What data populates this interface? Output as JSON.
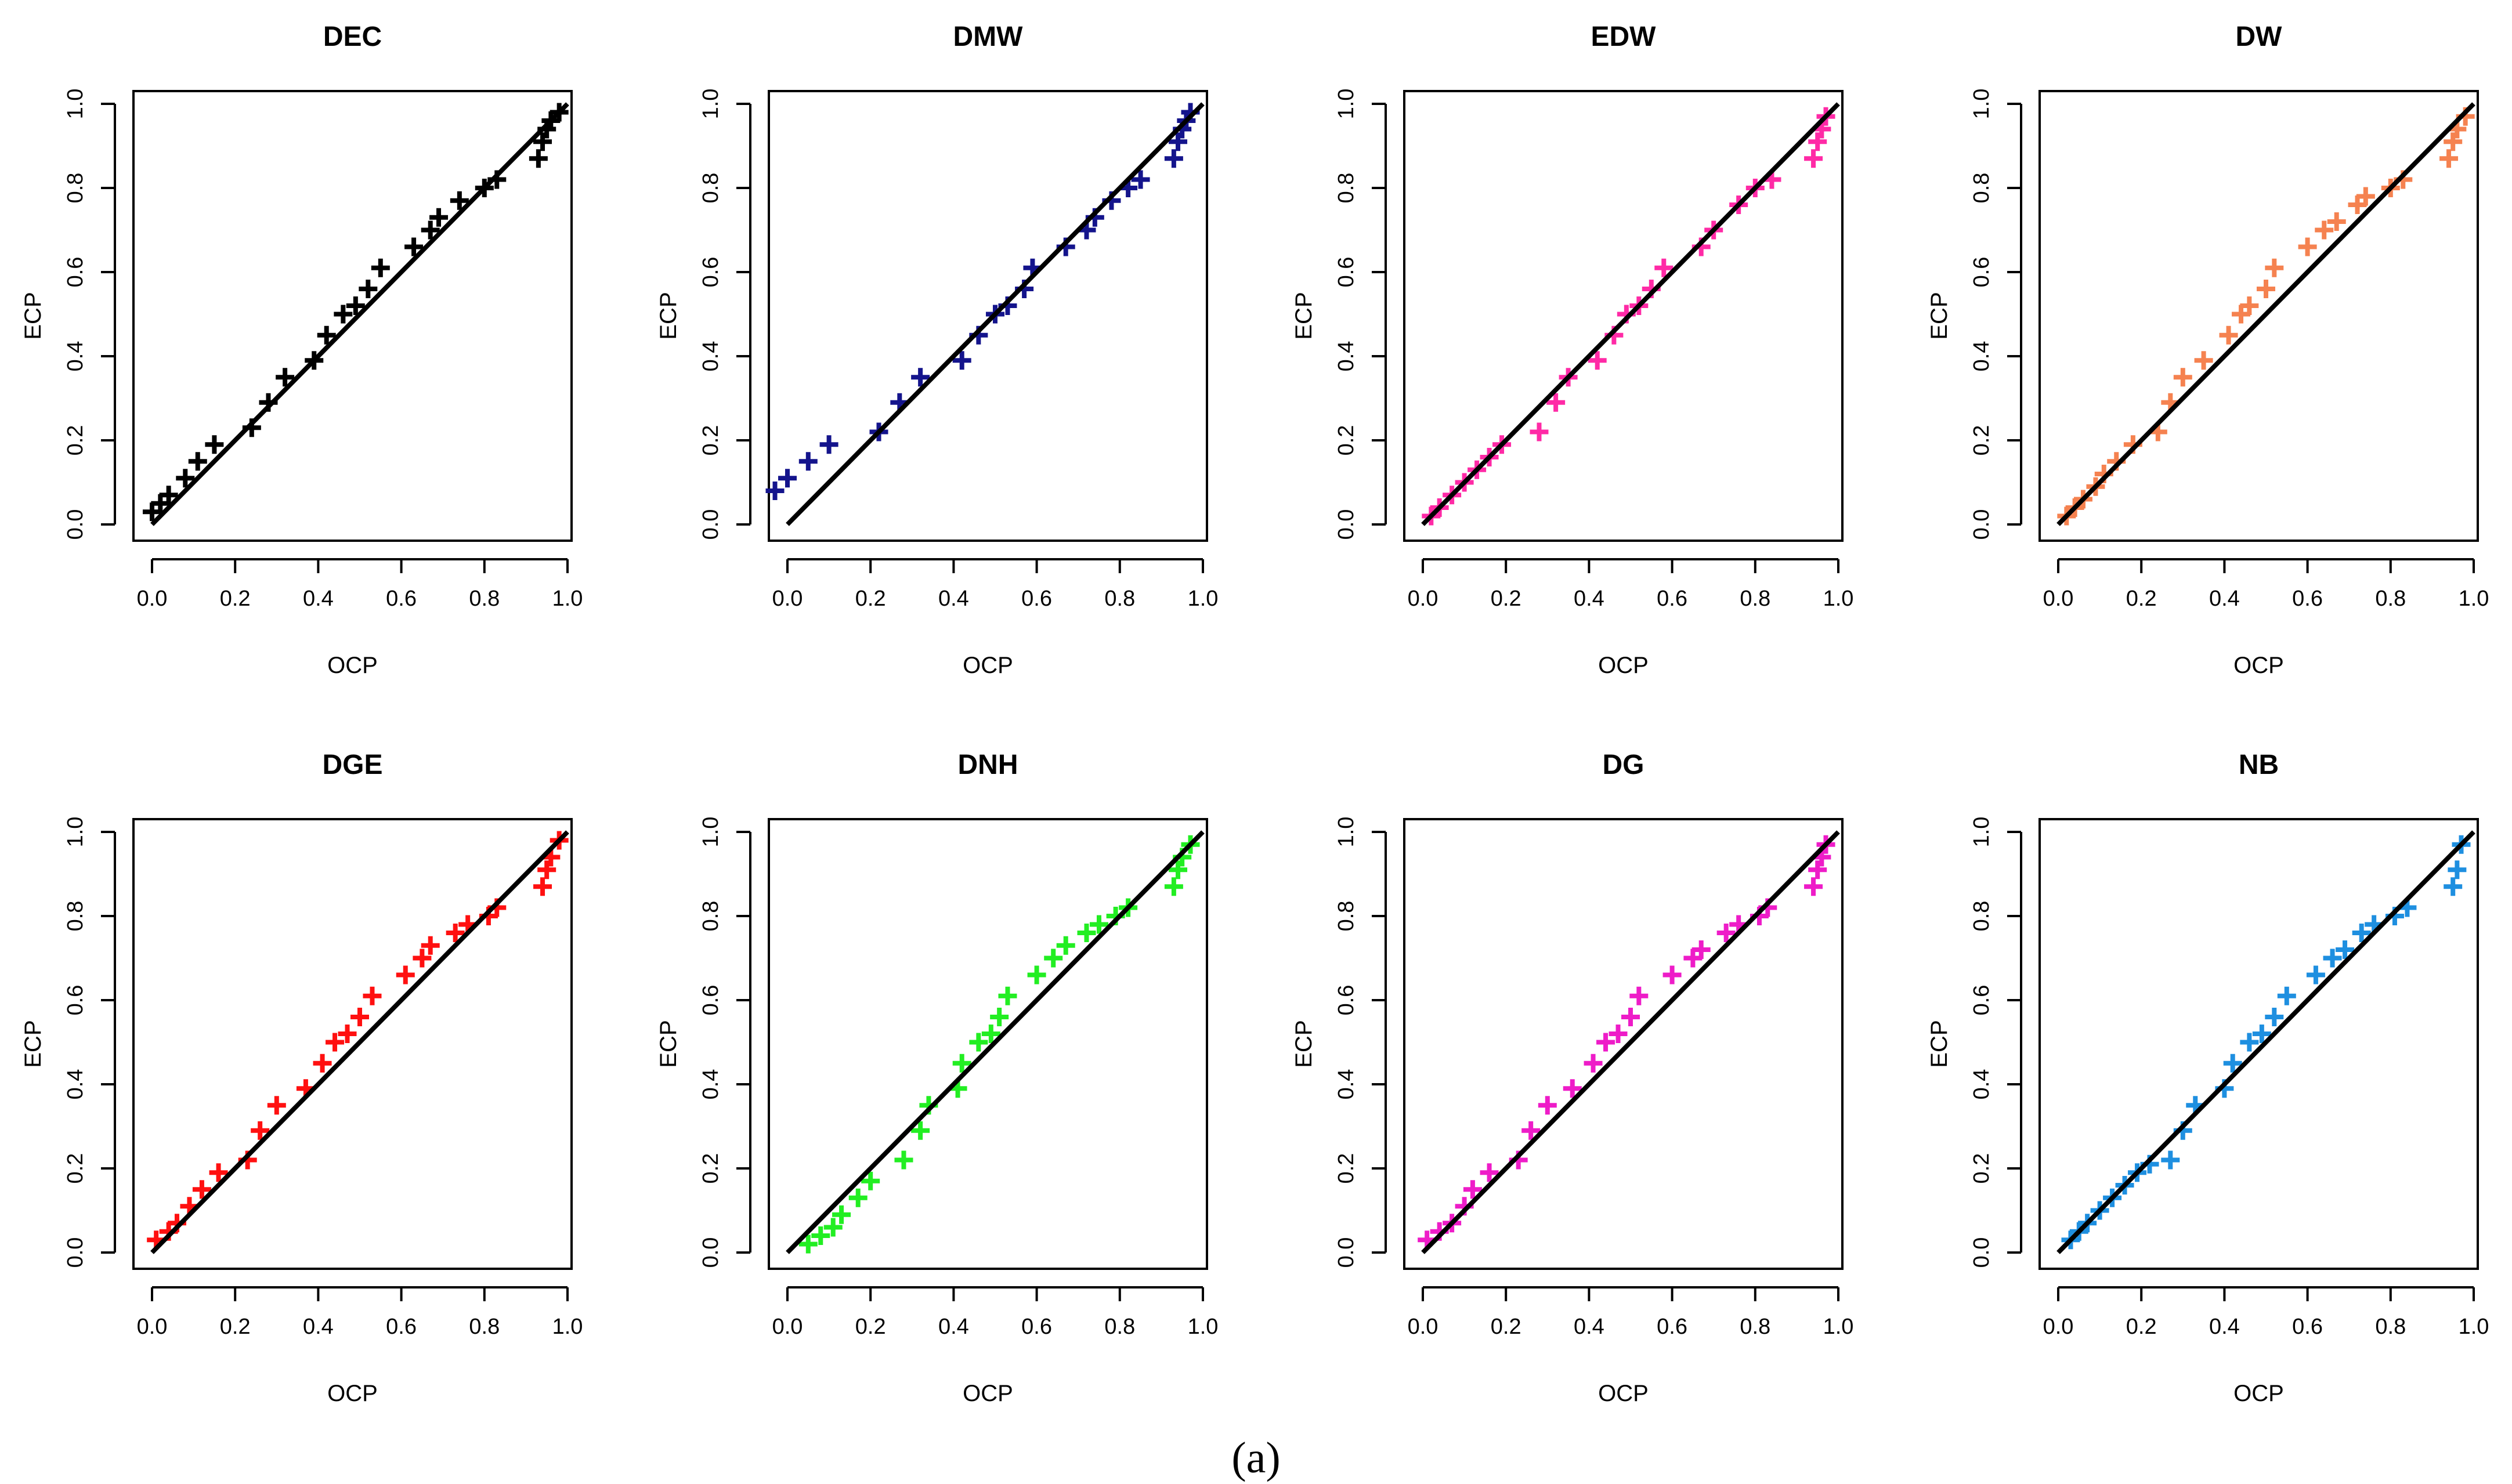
{
  "figure": {
    "caption": "(a)"
  },
  "chart_data": [
    {
      "type": "scatter",
      "title": "DEC",
      "xlabel": "OCP",
      "ylabel": "ECP",
      "xlim": [
        0,
        1
      ],
      "ylim": [
        0,
        1
      ],
      "color": "#000000",
      "xticks": [
        "0.0",
        "0.2",
        "0.4",
        "0.6",
        "0.8",
        "1.0"
      ],
      "yticks": [
        "0.0",
        "0.2",
        "0.4",
        "0.6",
        "0.8",
        "1.0"
      ],
      "reference_line": {
        "from": [
          0,
          0
        ],
        "to": [
          1,
          1
        ]
      },
      "x": [
        0.0,
        0.02,
        0.04,
        0.08,
        0.11,
        0.15,
        0.24,
        0.28,
        0.32,
        0.39,
        0.42,
        0.46,
        0.49,
        0.52,
        0.55,
        0.63,
        0.67,
        0.69,
        0.74,
        0.8,
        0.83,
        0.93,
        0.94,
        0.95,
        0.96,
        0.98
      ],
      "y": [
        0.03,
        0.05,
        0.07,
        0.11,
        0.15,
        0.19,
        0.23,
        0.29,
        0.35,
        0.39,
        0.45,
        0.5,
        0.52,
        0.56,
        0.61,
        0.66,
        0.7,
        0.73,
        0.77,
        0.8,
        0.82,
        0.87,
        0.91,
        0.94,
        0.96,
        0.98
      ]
    },
    {
      "type": "scatter",
      "title": "DMW",
      "xlabel": "OCP",
      "ylabel": "ECP",
      "xlim": [
        0,
        1
      ],
      "ylim": [
        0,
        1
      ],
      "color": "#14148c",
      "xticks": [
        "0.0",
        "0.2",
        "0.4",
        "0.6",
        "0.8",
        "1.0"
      ],
      "yticks": [
        "0.0",
        "0.2",
        "0.4",
        "0.6",
        "0.8",
        "1.0"
      ],
      "reference_line": {
        "from": [
          0,
          0
        ],
        "to": [
          1,
          1
        ]
      },
      "x": [
        -0.03,
        0.0,
        0.05,
        0.1,
        0.22,
        0.27,
        0.32,
        0.42,
        0.46,
        0.5,
        0.53,
        0.57,
        0.59,
        0.67,
        0.72,
        0.74,
        0.78,
        0.82,
        0.85,
        0.93,
        0.94,
        0.95,
        0.96,
        0.97
      ],
      "y": [
        0.08,
        0.11,
        0.15,
        0.19,
        0.22,
        0.29,
        0.35,
        0.39,
        0.45,
        0.5,
        0.52,
        0.56,
        0.61,
        0.66,
        0.7,
        0.73,
        0.77,
        0.8,
        0.82,
        0.87,
        0.91,
        0.94,
        0.96,
        0.98
      ]
    },
    {
      "type": "scatter",
      "title": "EDW",
      "xlabel": "OCP",
      "ylabel": "ECP",
      "xlim": [
        0,
        1
      ],
      "ylim": [
        0,
        1
      ],
      "color": "#ff2aa6",
      "xticks": [
        "0.0",
        "0.2",
        "0.4",
        "0.6",
        "0.8",
        "1.0"
      ],
      "yticks": [
        "0.0",
        "0.2",
        "0.4",
        "0.6",
        "0.8",
        "1.0"
      ],
      "reference_line": {
        "from": [
          0,
          0
        ],
        "to": [
          1,
          1
        ]
      },
      "x": [
        0.02,
        0.04,
        0.07,
        0.1,
        0.13,
        0.16,
        0.19,
        0.28,
        0.32,
        0.35,
        0.42,
        0.46,
        0.49,
        0.52,
        0.55,
        0.58,
        0.67,
        0.7,
        0.76,
        0.8,
        0.84,
        0.94,
        0.95,
        0.96,
        0.97
      ],
      "y": [
        0.02,
        0.04,
        0.07,
        0.1,
        0.13,
        0.16,
        0.19,
        0.22,
        0.29,
        0.35,
        0.39,
        0.45,
        0.5,
        0.52,
        0.56,
        0.61,
        0.66,
        0.7,
        0.76,
        0.8,
        0.82,
        0.87,
        0.91,
        0.94,
        0.97
      ]
    },
    {
      "type": "scatter",
      "title": "DW",
      "xlabel": "OCP",
      "ylabel": "ECP",
      "xlim": [
        0,
        1
      ],
      "ylim": [
        0,
        1
      ],
      "color": "#f58250",
      "xticks": [
        "0.0",
        "0.2",
        "0.4",
        "0.6",
        "0.8",
        "1.0"
      ],
      "yticks": [
        "0.0",
        "0.2",
        "0.4",
        "0.6",
        "0.8",
        "1.0"
      ],
      "reference_line": {
        "from": [
          0,
          0
        ],
        "to": [
          1,
          1
        ]
      },
      "x": [
        0.02,
        0.04,
        0.06,
        0.09,
        0.11,
        0.14,
        0.18,
        0.24,
        0.27,
        0.3,
        0.35,
        0.41,
        0.44,
        0.46,
        0.5,
        0.52,
        0.6,
        0.64,
        0.67,
        0.72,
        0.74,
        0.8,
        0.83,
        0.94,
        0.95,
        0.96,
        0.98
      ],
      "y": [
        0.02,
        0.04,
        0.06,
        0.09,
        0.12,
        0.15,
        0.19,
        0.22,
        0.29,
        0.35,
        0.39,
        0.45,
        0.5,
        0.52,
        0.56,
        0.61,
        0.66,
        0.7,
        0.72,
        0.76,
        0.78,
        0.8,
        0.82,
        0.87,
        0.91,
        0.94,
        0.97
      ]
    },
    {
      "type": "scatter",
      "title": "DGE",
      "xlabel": "OCP",
      "ylabel": "ECP",
      "xlim": [
        0,
        1
      ],
      "ylim": [
        0,
        1
      ],
      "color": "#ff1010",
      "xticks": [
        "0.0",
        "0.2",
        "0.4",
        "0.6",
        "0.8",
        "1.0"
      ],
      "yticks": [
        "0.0",
        "0.2",
        "0.4",
        "0.6",
        "0.8",
        "1.0"
      ],
      "reference_line": {
        "from": [
          0,
          0
        ],
        "to": [
          1,
          1
        ]
      },
      "x": [
        0.01,
        0.04,
        0.06,
        0.09,
        0.12,
        0.16,
        0.23,
        0.26,
        0.3,
        0.37,
        0.41,
        0.44,
        0.47,
        0.5,
        0.53,
        0.61,
        0.65,
        0.67,
        0.73,
        0.76,
        0.81,
        0.83,
        0.94,
        0.95,
        0.96,
        0.98
      ],
      "y": [
        0.03,
        0.05,
        0.07,
        0.11,
        0.15,
        0.19,
        0.22,
        0.29,
        0.35,
        0.39,
        0.45,
        0.5,
        0.52,
        0.56,
        0.61,
        0.66,
        0.7,
        0.73,
        0.76,
        0.78,
        0.8,
        0.82,
        0.87,
        0.91,
        0.94,
        0.98
      ]
    },
    {
      "type": "scatter",
      "title": "DNH",
      "xlabel": "OCP",
      "ylabel": "ECP",
      "xlim": [
        0,
        1
      ],
      "ylim": [
        0,
        1
      ],
      "color": "#22ee22",
      "xticks": [
        "0.0",
        "0.2",
        "0.4",
        "0.6",
        "0.8",
        "1.0"
      ],
      "yticks": [
        "0.0",
        "0.2",
        "0.4",
        "0.6",
        "0.8",
        "1.0"
      ],
      "reference_line": {
        "from": [
          0,
          0
        ],
        "to": [
          1,
          1
        ]
      },
      "x": [
        0.05,
        0.08,
        0.11,
        0.13,
        0.17,
        0.2,
        0.28,
        0.32,
        0.34,
        0.41,
        0.42,
        0.46,
        0.49,
        0.51,
        0.53,
        0.6,
        0.64,
        0.67,
        0.72,
        0.75,
        0.79,
        0.82,
        0.93,
        0.94,
        0.95,
        0.97
      ],
      "y": [
        0.02,
        0.04,
        0.06,
        0.09,
        0.13,
        0.17,
        0.22,
        0.29,
        0.35,
        0.39,
        0.45,
        0.5,
        0.52,
        0.56,
        0.61,
        0.66,
        0.7,
        0.73,
        0.76,
        0.78,
        0.8,
        0.82,
        0.87,
        0.91,
        0.94,
        0.97
      ]
    },
    {
      "type": "scatter",
      "title": "DG",
      "xlabel": "OCP",
      "ylabel": "ECP",
      "xlim": [
        0,
        1
      ],
      "ylim": [
        0,
        1
      ],
      "color": "#ee1cc8",
      "xticks": [
        "0.0",
        "0.2",
        "0.4",
        "0.6",
        "0.8",
        "1.0"
      ],
      "yticks": [
        "0.0",
        "0.2",
        "0.4",
        "0.6",
        "0.8",
        "1.0"
      ],
      "reference_line": {
        "from": [
          0,
          0
        ],
        "to": [
          1,
          1
        ]
      },
      "x": [
        0.01,
        0.04,
        0.07,
        0.1,
        0.12,
        0.16,
        0.23,
        0.26,
        0.3,
        0.36,
        0.41,
        0.44,
        0.47,
        0.5,
        0.52,
        0.6,
        0.65,
        0.67,
        0.73,
        0.76,
        0.81,
        0.83,
        0.94,
        0.95,
        0.96,
        0.97
      ],
      "y": [
        0.03,
        0.05,
        0.07,
        0.11,
        0.15,
        0.19,
        0.22,
        0.29,
        0.35,
        0.39,
        0.45,
        0.5,
        0.52,
        0.56,
        0.61,
        0.66,
        0.7,
        0.72,
        0.76,
        0.78,
        0.8,
        0.82,
        0.87,
        0.91,
        0.94,
        0.97
      ]
    },
    {
      "type": "scatter",
      "title": "NB",
      "xlabel": "OCP",
      "ylabel": "ECP",
      "xlim": [
        0,
        1
      ],
      "ylim": [
        0,
        1
      ],
      "color": "#1e8fe0",
      "xticks": [
        "0.0",
        "0.2",
        "0.4",
        "0.6",
        "0.8",
        "1.0"
      ],
      "yticks": [
        "0.0",
        "0.2",
        "0.4",
        "0.6",
        "0.8",
        "1.0"
      ],
      "reference_line": {
        "from": [
          0,
          0
        ],
        "to": [
          1,
          1
        ]
      },
      "x": [
        0.03,
        0.05,
        0.07,
        0.1,
        0.13,
        0.16,
        0.19,
        0.22,
        0.27,
        0.3,
        0.33,
        0.4,
        0.42,
        0.46,
        0.49,
        0.52,
        0.55,
        0.62,
        0.66,
        0.69,
        0.73,
        0.76,
        0.81,
        0.84,
        0.95,
        0.96,
        0.97
      ],
      "y": [
        0.03,
        0.05,
        0.07,
        0.1,
        0.13,
        0.16,
        0.19,
        0.21,
        0.22,
        0.29,
        0.35,
        0.39,
        0.45,
        0.5,
        0.52,
        0.56,
        0.61,
        0.66,
        0.7,
        0.72,
        0.76,
        0.78,
        0.8,
        0.82,
        0.87,
        0.91,
        0.97
      ]
    }
  ]
}
